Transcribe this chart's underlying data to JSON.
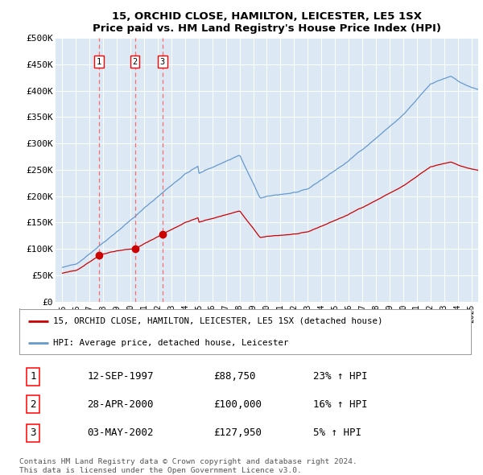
{
  "title": "15, ORCHID CLOSE, HAMILTON, LEICESTER, LE5 1SX",
  "subtitle": "Price paid vs. HM Land Registry's House Price Index (HPI)",
  "ylim": [
    0,
    500000
  ],
  "yticks": [
    0,
    50000,
    100000,
    150000,
    200000,
    250000,
    300000,
    350000,
    400000,
    450000,
    500000
  ],
  "ytick_labels": [
    "£0",
    "£50K",
    "£100K",
    "£150K",
    "£200K",
    "£250K",
    "£300K",
    "£350K",
    "£400K",
    "£450K",
    "£500K"
  ],
  "background_color": "#dce9f5",
  "sale_dates_num": [
    1997.7,
    2000.32,
    2002.34
  ],
  "sale_prices": [
    88750,
    100000,
    127950
  ],
  "sale_labels": [
    "1",
    "2",
    "3"
  ],
  "legend_label_red": "15, ORCHID CLOSE, HAMILTON, LEICESTER, LE5 1SX (detached house)",
  "legend_label_blue": "HPI: Average price, detached house, Leicester",
  "table_rows": [
    [
      "1",
      "12-SEP-1997",
      "£88,750",
      "23% ↑ HPI"
    ],
    [
      "2",
      "28-APR-2000",
      "£100,000",
      "16% ↑ HPI"
    ],
    [
      "3",
      "03-MAY-2002",
      "£127,950",
      "5% ↑ HPI"
    ]
  ],
  "footer": "Contains HM Land Registry data © Crown copyright and database right 2024.\nThis data is licensed under the Open Government Licence v3.0.",
  "red_color": "#cc0000",
  "blue_color": "#6699cc"
}
